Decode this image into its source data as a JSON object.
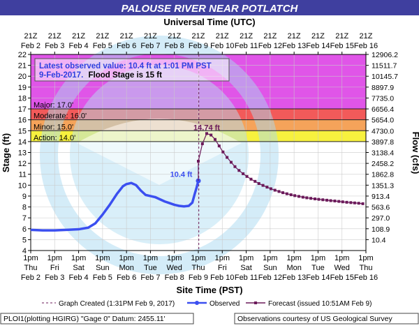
{
  "header": {
    "title": "PALOUSE RIVER NEAR POTLATCH",
    "top_axis_title": "Universal Time (UTC)",
    "bottom_axis_title": "Site Time (PST)"
  },
  "colors": {
    "title_band": "#3f3f9f",
    "major": "#e055e8",
    "moderate": "#f25a5a",
    "minor": "#f5a35a",
    "action": "#f7f13e",
    "observed": "#3b4ff0",
    "forecast": "#6b1a5a",
    "grid": "#c9c9c9",
    "watermark": "#a8d8f0"
  },
  "info_box": {
    "line1": "Latest observed value: 10.4 ft at 1:01 PM PST",
    "line2_date": "9-Feb-2017.",
    "line2_flood": "Flood Stage is 15 ft"
  },
  "flood_categories": [
    {
      "key": "major",
      "label": "Major: 17.0'",
      "from": 17,
      "to": 22
    },
    {
      "key": "moderate",
      "label": "Moderate: 16.0'",
      "from": 16,
      "to": 17
    },
    {
      "key": "minor",
      "label": "Minor: 15.0'",
      "from": 15,
      "to": 16
    },
    {
      "key": "action",
      "label": "Action: 14.0'",
      "from": 14,
      "to": 15
    }
  ],
  "legend": {
    "graph_created": "Graph Created (1:31PM Feb 9, 2017)",
    "observed": "Observed",
    "forecast": "Forecast (issued 10:51AM Feb 9)"
  },
  "footer": {
    "left": "PLOI1(plotting HGIRG) \"Gage 0\" Datum: 2455.11'",
    "right": "Observations courtesy of US Geological Survey"
  },
  "chart_data": {
    "type": "line",
    "xlim": [
      0,
      14
    ],
    "ylim": [
      4,
      22
    ],
    "grid": true,
    "y_ticks": [
      4,
      5,
      6,
      7,
      8,
      9,
      10,
      11,
      12,
      13,
      14,
      15,
      16,
      17,
      18,
      19,
      20,
      21,
      22
    ],
    "ylabel": "Stage (ft)",
    "y2label": "Flow (cfs)",
    "y2_ticks": [
      {
        "stage": 5,
        "label": "10.4"
      },
      {
        "stage": 6,
        "label": "108.9"
      },
      {
        "stage": 7,
        "label": "297.0"
      },
      {
        "stage": 8,
        "label": "563.6"
      },
      {
        "stage": 9,
        "label": "913.4"
      },
      {
        "stage": 10,
        "label": "1351.3"
      },
      {
        "stage": 11,
        "label": "1862.8"
      },
      {
        "stage": 12,
        "label": "2458.2"
      },
      {
        "stage": 13,
        "label": "3138.4"
      },
      {
        "stage": 14,
        "label": "3897.8"
      },
      {
        "stage": 15,
        "label": "4730.0"
      },
      {
        "stage": 16,
        "label": "5654.0"
      },
      {
        "stage": 17,
        "label": "6656.4"
      },
      {
        "stage": 18,
        "label": "7735.0"
      },
      {
        "stage": 19,
        "label": "8897.9"
      },
      {
        "stage": 20,
        "label": "10145.7"
      },
      {
        "stage": 21,
        "label": "11511.7"
      },
      {
        "stage": 22,
        "label": "12906.2"
      }
    ],
    "top_ticks": [
      {
        "x": 0,
        "l1": "21Z",
        "l2": "Feb  2"
      },
      {
        "x": 1,
        "l1": "21Z",
        "l2": "Feb  3"
      },
      {
        "x": 2,
        "l1": "21Z",
        "l2": "Feb  4"
      },
      {
        "x": 3,
        "l1": "21Z",
        "l2": "Feb  5"
      },
      {
        "x": 4,
        "l1": "21Z",
        "l2": "Feb  6"
      },
      {
        "x": 5,
        "l1": "21Z",
        "l2": "Feb  7"
      },
      {
        "x": 6,
        "l1": "21Z",
        "l2": "Feb  8"
      },
      {
        "x": 7,
        "l1": "21Z",
        "l2": "Feb  9"
      },
      {
        "x": 8,
        "l1": "21Z",
        "l2": "Feb 10"
      },
      {
        "x": 9,
        "l1": "21Z",
        "l2": "Feb 11"
      },
      {
        "x": 10,
        "l1": "21Z",
        "l2": "Feb 12"
      },
      {
        "x": 11,
        "l1": "21Z",
        "l2": "Feb 13"
      },
      {
        "x": 12,
        "l1": "21Z",
        "l2": "Feb 14"
      },
      {
        "x": 13,
        "l1": "21Z",
        "l2": "Feb 15"
      },
      {
        "x": 14,
        "l1": "21Z",
        "l2": "Feb 16"
      }
    ],
    "bottom_ticks": [
      {
        "x": 0,
        "l1": "1pm",
        "l2": "Thu",
        "l3": "Feb  2"
      },
      {
        "x": 1,
        "l1": "1pm",
        "l2": "Fri",
        "l3": "Feb  3"
      },
      {
        "x": 2,
        "l1": "1pm",
        "l2": "Sat",
        "l3": "Feb  4"
      },
      {
        "x": 3,
        "l1": "1pm",
        "l2": "Sun",
        "l3": "Feb  5"
      },
      {
        "x": 4,
        "l1": "1pm",
        "l2": "Mon",
        "l3": "Feb  6"
      },
      {
        "x": 5,
        "l1": "1pm",
        "l2": "Tue",
        "l3": "Feb  7"
      },
      {
        "x": 6,
        "l1": "1pm",
        "l2": "Wed",
        "l3": "Feb  8"
      },
      {
        "x": 7,
        "l1": "1pm",
        "l2": "Thu",
        "l3": "Feb  9"
      },
      {
        "x": 8,
        "l1": "1pm",
        "l2": "Fri",
        "l3": "Feb 10"
      },
      {
        "x": 9,
        "l1": "1pm",
        "l2": "Sat",
        "l3": "Feb 11"
      },
      {
        "x": 10,
        "l1": "1pm",
        "l2": "Sun",
        "l3": "Feb 12"
      },
      {
        "x": 11,
        "l1": "1pm",
        "l2": "Mon",
        "l3": "Feb 13"
      },
      {
        "x": 12,
        "l1": "1pm",
        "l2": "Tue",
        "l3": "Feb 14"
      },
      {
        "x": 13,
        "l1": "1pm",
        "l2": "Wed",
        "l3": "Feb 15"
      },
      {
        "x": 14,
        "l1": "1pm",
        "l2": "Thu",
        "l3": "Feb 16"
      }
    ],
    "graph_created_x": 7.02,
    "series": [
      {
        "name": "Observed",
        "values": [
          [
            0,
            5.9
          ],
          [
            0.5,
            5.85
          ],
          [
            1,
            5.85
          ],
          [
            1.5,
            5.9
          ],
          [
            2,
            5.95
          ],
          [
            2.4,
            6.1
          ],
          [
            2.7,
            6.5
          ],
          [
            3,
            7.3
          ],
          [
            3.3,
            8.2
          ],
          [
            3.6,
            9.2
          ],
          [
            3.85,
            9.9
          ],
          [
            4,
            10.1
          ],
          [
            4.2,
            10.2
          ],
          [
            4.4,
            10.0
          ],
          [
            4.6,
            9.5
          ],
          [
            4.8,
            9.1
          ],
          [
            5.0,
            9.0
          ],
          [
            5.2,
            8.9
          ],
          [
            5.4,
            8.7
          ],
          [
            5.6,
            8.5
          ],
          [
            5.8,
            8.35
          ],
          [
            6.0,
            8.2
          ],
          [
            6.2,
            8.1
          ],
          [
            6.4,
            8.05
          ],
          [
            6.6,
            8.1
          ],
          [
            6.75,
            8.4
          ],
          [
            6.85,
            9.2
          ],
          [
            6.93,
            9.8
          ],
          [
            7.0,
            10.4
          ]
        ]
      },
      {
        "name": "Forecast",
        "label": "14.74 ft",
        "peak_x": 7.35,
        "peak_y": 14.74,
        "values": [
          [
            7.0,
            12.2
          ],
          [
            7.17,
            13.8
          ],
          [
            7.35,
            14.74
          ],
          [
            7.53,
            14.6
          ],
          [
            7.7,
            14.2
          ],
          [
            7.87,
            13.6
          ],
          [
            8.03,
            13.05
          ],
          [
            8.2,
            12.55
          ],
          [
            8.37,
            12.1
          ],
          [
            8.53,
            11.7
          ],
          [
            8.7,
            11.35
          ],
          [
            8.87,
            11.05
          ],
          [
            9.03,
            10.8
          ],
          [
            9.2,
            10.55
          ],
          [
            9.37,
            10.35
          ],
          [
            9.53,
            10.15
          ],
          [
            9.7,
            9.98
          ],
          [
            9.87,
            9.82
          ],
          [
            10.03,
            9.67
          ],
          [
            10.2,
            9.54
          ],
          [
            10.37,
            9.42
          ],
          [
            10.53,
            9.31
          ],
          [
            10.7,
            9.21
          ],
          [
            10.87,
            9.12
          ],
          [
            11.03,
            9.04
          ],
          [
            11.2,
            8.97
          ],
          [
            11.37,
            8.9
          ],
          [
            11.53,
            8.84
          ],
          [
            11.7,
            8.79
          ],
          [
            11.87,
            8.74
          ],
          [
            12.03,
            8.7
          ],
          [
            12.2,
            8.66
          ],
          [
            12.37,
            8.62
          ],
          [
            12.53,
            8.58
          ],
          [
            12.7,
            8.55
          ],
          [
            12.87,
            8.51
          ],
          [
            13.03,
            8.47
          ],
          [
            13.2,
            8.43
          ],
          [
            13.37,
            8.4
          ],
          [
            13.53,
            8.37
          ],
          [
            13.7,
            8.34
          ],
          [
            13.87,
            8.3
          ]
        ]
      }
    ],
    "annotations": [
      {
        "text": "10.4 ft",
        "x": 6.75,
        "y": 10.75
      }
    ]
  }
}
